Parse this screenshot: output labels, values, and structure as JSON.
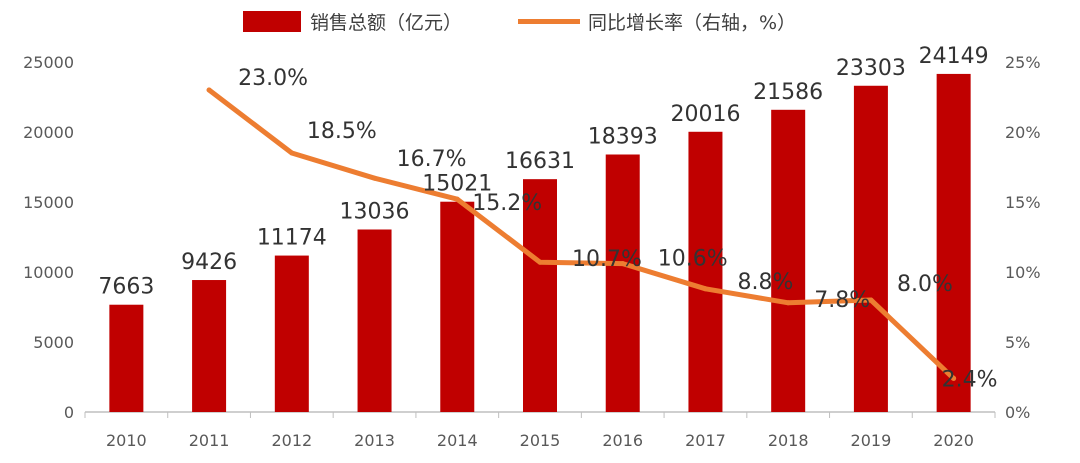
{
  "chart_data": {
    "type": "bar",
    "categories": [
      "2010",
      "2011",
      "2012",
      "2013",
      "2014",
      "2015",
      "2016",
      "2017",
      "2018",
      "2019",
      "2020"
    ],
    "series": [
      {
        "name": "销售总额（亿元）",
        "type": "bar",
        "axis": "left",
        "color": "#c00000",
        "values": [
          7663,
          9426,
          11174,
          13036,
          15021,
          16631,
          18393,
          20016,
          21586,
          23303,
          24149
        ],
        "labels": [
          "7663",
          "9426",
          "11174",
          "13036",
          "15021",
          "16631",
          "18393",
          "20016",
          "21586",
          "23303",
          "24149"
        ]
      },
      {
        "name": "同比增长率（右轴，%）",
        "type": "line",
        "axis": "right",
        "color": "#ed7d31",
        "values": [
          null,
          23.0,
          18.5,
          16.7,
          15.2,
          10.7,
          10.6,
          8.8,
          7.8,
          8.0,
          2.4
        ],
        "labels": [
          "",
          "23.0%",
          "18.5%",
          "16.7%",
          "15.2%",
          "10.7%",
          "10.6%",
          "8.8%",
          "7.8%",
          "8.0%",
          "2.4%"
        ]
      }
    ],
    "y_left": {
      "ylim": [
        0,
        25000
      ],
      "ticks": [
        "0",
        "5000",
        "10000",
        "15000",
        "20000",
        "25000"
      ]
    },
    "y_right": {
      "ylim": [
        0,
        25
      ],
      "ticks": [
        "0%",
        "5%",
        "10%",
        "15%",
        "20%",
        "25%"
      ]
    },
    "legend_position": "top-center",
    "grid": false
  }
}
